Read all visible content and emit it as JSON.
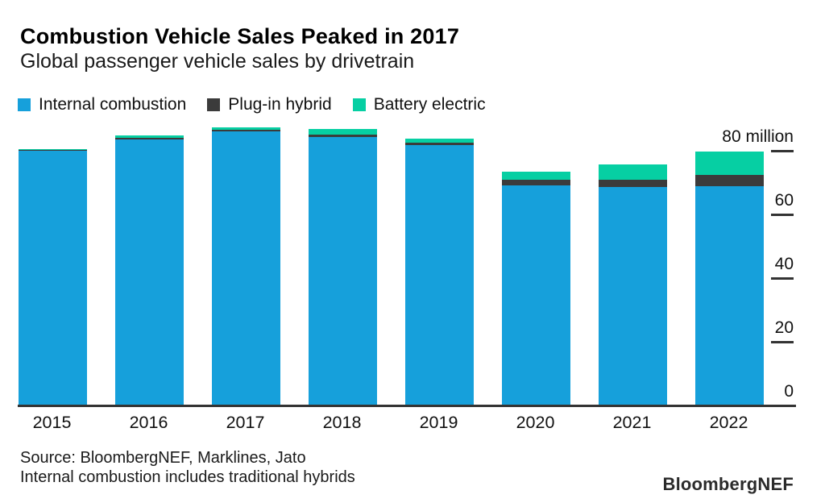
{
  "header": {
    "title": "Combustion Vehicle Sales Peaked in 2017",
    "subtitle": "Global passenger vehicle sales by drivetrain"
  },
  "legend": {
    "items": [
      {
        "label": "Internal combustion",
        "color": "#16A0DB"
      },
      {
        "label": "Plug-in hybrid",
        "color": "#3B3B3B"
      },
      {
        "label": "Battery electric",
        "color": "#06CFA3"
      }
    ]
  },
  "colors": {
    "internal_combustion": "#16A0DB",
    "plugin_hybrid": "#3B3B3B",
    "battery_electric": "#06CFA3",
    "axis": "#333333",
    "text": "#111111"
  },
  "chart_data": {
    "type": "bar",
    "stacked": true,
    "title": "Combustion Vehicle Sales Peaked in 2017",
    "subtitle": "Global passenger vehicle sales by drivetrain",
    "unit": "million vehicles",
    "categories": [
      "2015",
      "2016",
      "2017",
      "2018",
      "2019",
      "2020",
      "2021",
      "2022"
    ],
    "series": [
      {
        "name": "Internal combustion",
        "color": "#16A0DB",
        "values": [
          80.0,
          83.5,
          86.0,
          84.3,
          81.8,
          69.0,
          68.5,
          68.8
        ]
      },
      {
        "name": "Plug-in hybrid",
        "color": "#3B3B3B",
        "values": [
          0.2,
          0.5,
          0.5,
          0.8,
          0.8,
          1.8,
          2.3,
          3.6
        ]
      },
      {
        "name": "Battery electric",
        "color": "#06CFA3",
        "values": [
          0.3,
          0.8,
          0.8,
          1.8,
          1.3,
          2.5,
          4.8,
          7.4
        ]
      }
    ],
    "totals": [
      80.5,
      84.8,
      87.3,
      86.9,
      83.9,
      73.3,
      75.6,
      79.8
    ],
    "ylim": [
      0,
      80
    ],
    "yticks": [
      80,
      60,
      40,
      20,
      0
    ],
    "ytick_top_label": "80 million",
    "grid": false,
    "legend_position": "top-left",
    "axis_side": "right"
  },
  "footer": {
    "source_line": "Source: BloombergNEF, Marklines, Jato",
    "note_line": "Internal combustion includes traditional hybrids",
    "brand": "BloombergNEF"
  }
}
